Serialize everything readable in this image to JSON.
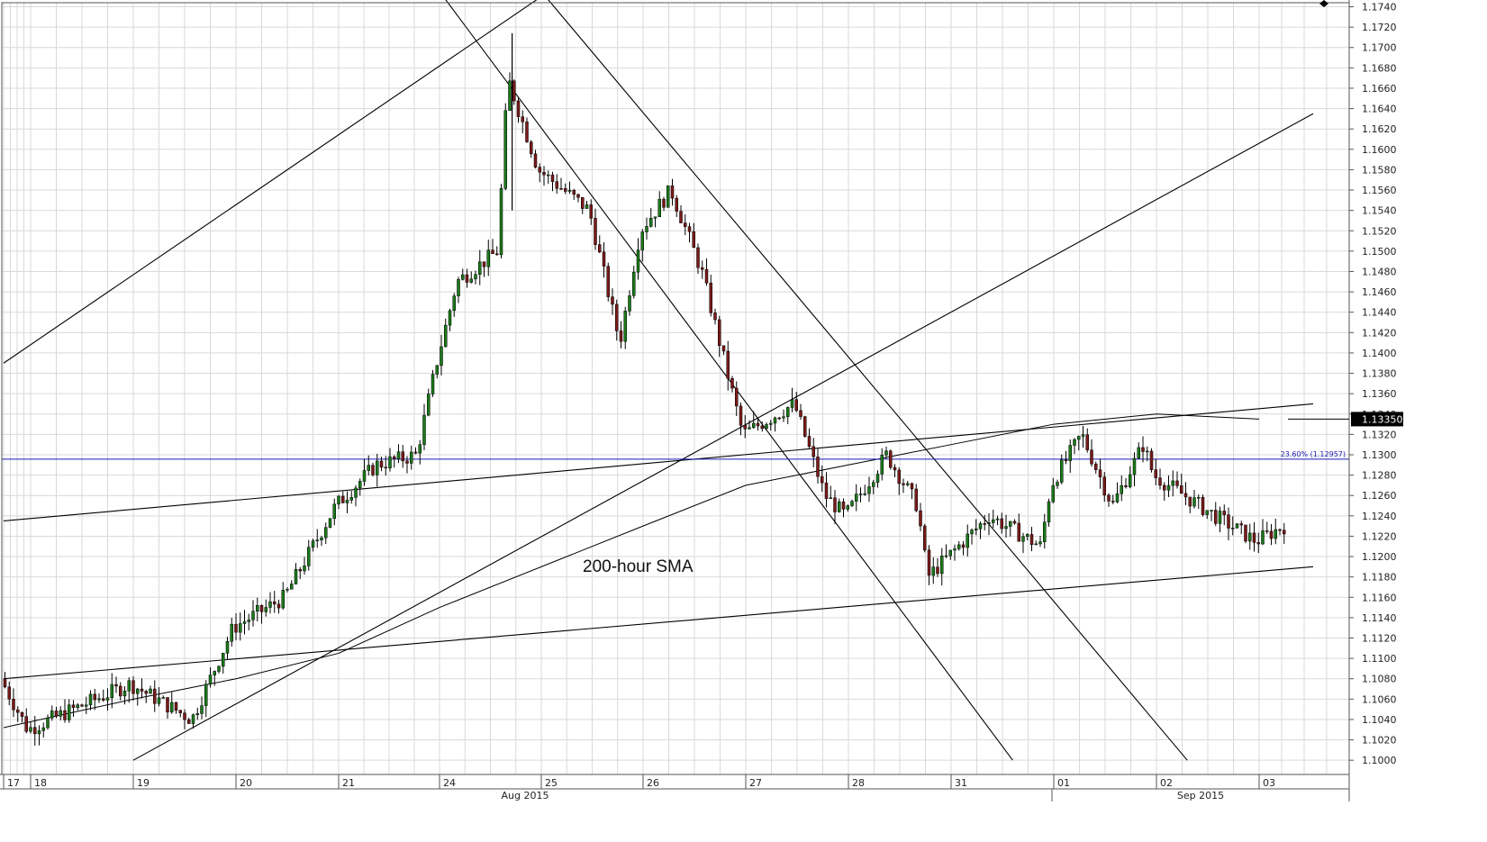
{
  "chart_data": {
    "type": "candlestick",
    "instrument_price_tag": "1.13350",
    "ylim": [
      1.0986,
      1.1744
    ],
    "y_ticks": [
      "1.1000",
      "1.1020",
      "1.1040",
      "1.1060",
      "1.1080",
      "1.1100",
      "1.1120",
      "1.1140",
      "1.1160",
      "1.1180",
      "1.1200",
      "1.1220",
      "1.1240",
      "1.1260",
      "1.1280",
      "1.1300",
      "1.1320",
      "1.1340",
      "1.1360",
      "1.1380",
      "1.1400",
      "1.1420",
      "1.1440",
      "1.1460",
      "1.1480",
      "1.1500",
      "1.1520",
      "1.1540",
      "1.1560",
      "1.1580",
      "1.1600",
      "1.1620",
      "1.1640",
      "1.1660",
      "1.1680",
      "1.1700",
      "1.1720",
      "1.1740"
    ],
    "x_ticks": [
      "17",
      "18",
      "19",
      "20",
      "21",
      "24",
      "25",
      "26",
      "27",
      "28",
      "31",
      "01",
      "02",
      "03"
    ],
    "months": [
      "Aug 2015",
      "Sep 2015"
    ],
    "annotation": "200-hour SMA",
    "fib_label": "23.60% (1.12957)",
    "fib_level": 1.12957,
    "colors": {
      "up": "#1a7a1a",
      "down": "#7a1a1a",
      "line": "#000000",
      "fib": "#1a1ab4",
      "grid": "#d9d9d9"
    },
    "key_points": [
      [
        "17",
        1.108
      ],
      [
        "18",
        1.103
      ],
      [
        "19",
        1.1075
      ],
      [
        "19.6",
        1.104
      ],
      [
        "20",
        1.113
      ],
      [
        "20.5",
        1.116
      ],
      [
        "21",
        1.125
      ],
      [
        "21.4",
        1.129
      ],
      [
        "21.8",
        1.13
      ],
      [
        "24",
        1.139
      ],
      [
        "24.2",
        1.147
      ],
      [
        "24.6",
        1.15
      ],
      [
        "24.7",
        1.167
      ],
      [
        "25",
        1.158
      ],
      [
        "25.5",
        1.154
      ],
      [
        "25.8",
        1.141
      ],
      [
        "26",
        1.152
      ],
      [
        "26.3",
        1.156
      ],
      [
        "26.6",
        1.148
      ],
      [
        "27",
        1.132
      ],
      [
        "27.5",
        1.135
      ],
      [
        "27.8",
        1.126
      ],
      [
        "28",
        1.124
      ],
      [
        "28.4",
        1.13
      ],
      [
        "28.7",
        1.125
      ],
      [
        "28.8",
        1.118
      ],
      [
        "31",
        1.12
      ],
      [
        "31.4",
        1.124
      ],
      [
        "31.9",
        1.121
      ],
      [
        "01",
        1.127
      ],
      [
        "01.3",
        1.132
      ],
      [
        "01.6",
        1.125
      ],
      [
        "01.9",
        1.131
      ],
      [
        "02",
        1.128
      ],
      [
        "02.6",
        1.124
      ],
      [
        "03",
        1.1215
      ],
      [
        "03.3",
        1.123
      ]
    ],
    "sma_200": [
      [
        "17",
        1.1032
      ],
      [
        "19",
        1.106
      ],
      [
        "20",
        1.108
      ],
      [
        "21",
        1.1105
      ],
      [
        "24",
        1.115
      ],
      [
        "25",
        1.119
      ],
      [
        "26",
        1.123
      ],
      [
        "27",
        1.127
      ],
      [
        "28",
        1.129
      ],
      [
        "31",
        1.131
      ],
      [
        "01",
        1.133
      ],
      [
        "02",
        1.134
      ],
      [
        "03",
        1.1335
      ]
    ],
    "trendlines": [
      {
        "from": [
          "17",
          1.139
        ],
        "to": [
          "25",
          1.175
        ]
      },
      {
        "from": [
          "17",
          1.1235
        ],
        "to": [
          "03.6",
          1.135
        ]
      },
      {
        "from": [
          "17",
          1.108
        ],
        "to": [
          "03.6",
          1.119
        ]
      },
      {
        "from": [
          "19",
          1.1
        ],
        "to": [
          "03.6",
          1.1635
        ]
      },
      {
        "from": [
          "24",
          1.1755
        ],
        "to": [
          "31.6",
          1.1
        ]
      },
      {
        "from": [
          "25",
          1.1755
        ],
        "to": [
          "02.3",
          1.1
        ]
      }
    ]
  }
}
